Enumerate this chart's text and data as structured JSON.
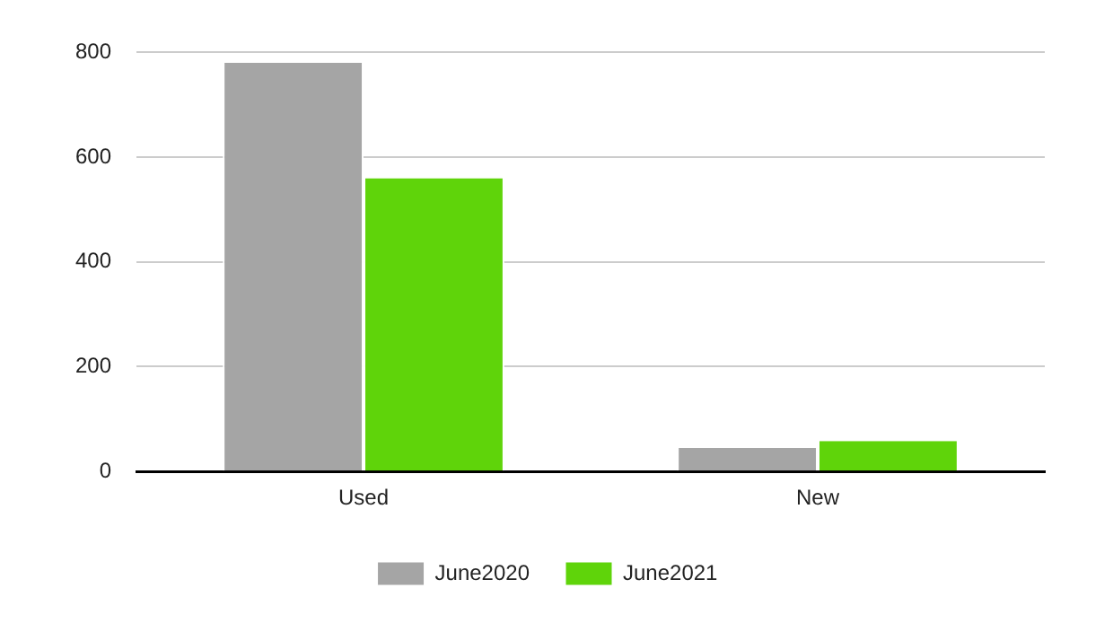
{
  "chart_data": {
    "type": "bar",
    "categories": [
      "Used",
      "New"
    ],
    "series": [
      {
        "name": "June2020",
        "color": "#a5a5a5",
        "values": [
          780,
          45
        ]
      },
      {
        "name": "June2021",
        "color": "#5fd40a",
        "values": [
          560,
          58
        ]
      }
    ],
    "ylim": [
      0,
      800
    ],
    "yticks": [
      0,
      200,
      400,
      600,
      800
    ],
    "grid": "y",
    "legend": "bottom"
  }
}
